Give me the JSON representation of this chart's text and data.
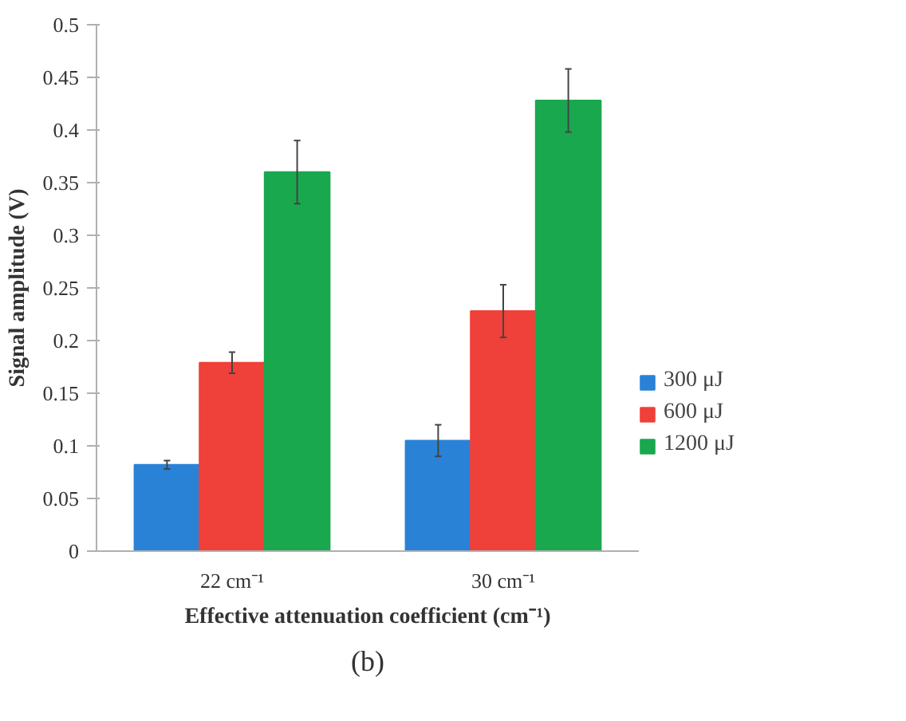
{
  "chart_data": {
    "type": "bar",
    "categories": [
      "22 cm⁻¹",
      "30 cm⁻¹"
    ],
    "xlabel": "Effective attenuation coefficient (cm⁻¹)",
    "ylabel": "Signal amplitude (V)",
    "annotations": [
      "(b)"
    ],
    "series": [
      {
        "name": "300 μJ",
        "color": "#2a82d6",
        "values": [
          0.082,
          0.105
        ],
        "errors": [
          0.004,
          0.015
        ]
      },
      {
        "name": "600 μJ",
        "color": "#f0403a",
        "values": [
          0.179,
          0.228
        ],
        "errors": [
          0.01,
          0.025
        ]
      },
      {
        "name": "1200 μJ",
        "color": "#1aa84f",
        "values": [
          0.36,
          0.428
        ],
        "errors": [
          0.03,
          0.03
        ]
      }
    ],
    "ylim": [
      0,
      0.5
    ],
    "yticks": [
      0,
      {
        "value": 0.05,
        "label": "0.05"
      },
      {
        "value": 0.1,
        "label": "0.1"
      },
      {
        "value": 0.15,
        "label": "0.15"
      },
      {
        "value": 0.2,
        "label": "0.2"
      },
      {
        "value": 0.25,
        "label": "0.25"
      },
      {
        "value": 0.3,
        "label": "0.3"
      },
      {
        "value": 0.35,
        "label": "0.35"
      },
      {
        "value": 0.4,
        "label": "0.4"
      },
      {
        "value": 0.45,
        "label": "0.45"
      },
      {
        "value": 0.5,
        "label": "0.5"
      }
    ],
    "grid": false,
    "legend": "right"
  }
}
